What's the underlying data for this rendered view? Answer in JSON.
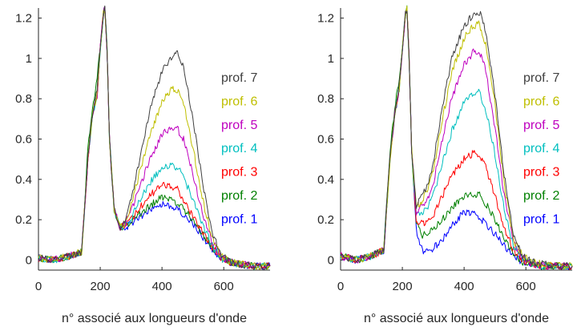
{
  "colors": {
    "prof. 1": "#0000ff",
    "prof. 2": "#008000",
    "prof. 3": "#ff0000",
    "prof. 4": "#00bfbf",
    "prof. 5": "#bf00bf",
    "prof. 6": "#bfbf00",
    "prof. 7": "#404040"
  },
  "chart_data": [
    {
      "type": "line",
      "title": "",
      "xlabel": "n° associé aux longueurs d'onde",
      "ylabel": "",
      "xlim": [
        0,
        750
      ],
      "ylim": [
        -0.05,
        1.25
      ],
      "xticks": [
        0,
        200,
        400,
        600
      ],
      "yticks": [
        0,
        0.2,
        0.4,
        0.6,
        0.8,
        1,
        1.2
      ],
      "xtick_labels": [
        "0",
        "200",
        "400",
        "600"
      ],
      "ytick_labels": [
        "0",
        "0.2",
        "0.4",
        "0.6",
        "0.8",
        "1",
        "1.2"
      ],
      "grid": false,
      "legend_position": "right",
      "legend": [
        "prof. 7",
        "prof. 6",
        "prof. 5",
        "prof. 4",
        "prof. 3",
        "prof. 2",
        "prof. 1"
      ],
      "x": [
        0,
        50,
        100,
        140,
        160,
        175,
        190,
        200,
        210,
        215,
        222,
        230,
        245,
        265,
        280,
        300,
        330,
        360,
        400,
        430,
        450,
        470,
        500,
        530,
        560,
        590,
        620,
        650,
        700,
        750
      ],
      "series": [
        {
          "name": "prof. 1",
          "values": [
            0.01,
            0.0,
            0.02,
            0.04,
            0.5,
            0.72,
            0.82,
            1.05,
            1.22,
            1.25,
            1.05,
            0.6,
            0.25,
            0.16,
            0.16,
            0.18,
            0.21,
            0.25,
            0.28,
            0.27,
            0.25,
            0.22,
            0.18,
            0.12,
            0.06,
            0.01,
            -0.01,
            -0.02,
            -0.03,
            -0.03
          ]
        },
        {
          "name": "prof. 2",
          "values": [
            0.01,
            0.0,
            0.02,
            0.04,
            0.55,
            0.75,
            0.9,
            1.05,
            1.22,
            1.25,
            1.05,
            0.6,
            0.25,
            0.16,
            0.17,
            0.19,
            0.23,
            0.27,
            0.31,
            0.3,
            0.28,
            0.25,
            0.2,
            0.13,
            0.07,
            0.01,
            -0.01,
            -0.02,
            -0.03,
            -0.03
          ]
        },
        {
          "name": "prof. 3",
          "values": [
            0.01,
            0.0,
            0.02,
            0.04,
            0.5,
            0.72,
            0.82,
            1.05,
            1.22,
            1.25,
            1.05,
            0.6,
            0.25,
            0.16,
            0.17,
            0.2,
            0.26,
            0.32,
            0.37,
            0.37,
            0.35,
            0.3,
            0.22,
            0.14,
            0.07,
            0.01,
            -0.01,
            -0.02,
            -0.03,
            -0.03
          ]
        },
        {
          "name": "prof. 4",
          "values": [
            0.01,
            0.0,
            0.02,
            0.04,
            0.5,
            0.72,
            0.82,
            1.05,
            1.22,
            1.25,
            1.05,
            0.6,
            0.25,
            0.16,
            0.17,
            0.21,
            0.3,
            0.38,
            0.46,
            0.47,
            0.46,
            0.41,
            0.3,
            0.18,
            0.08,
            0.01,
            -0.01,
            -0.02,
            -0.03,
            -0.03
          ]
        },
        {
          "name": "prof. 5",
          "values": [
            0.01,
            0.0,
            0.02,
            0.04,
            0.5,
            0.72,
            0.82,
            1.05,
            1.22,
            1.25,
            1.05,
            0.6,
            0.25,
            0.16,
            0.18,
            0.24,
            0.37,
            0.5,
            0.62,
            0.66,
            0.65,
            0.6,
            0.43,
            0.24,
            0.1,
            0.02,
            -0.01,
            -0.02,
            -0.03,
            -0.03
          ]
        },
        {
          "name": "prof. 6",
          "values": [
            0.01,
            0.0,
            0.02,
            0.04,
            0.5,
            0.72,
            0.82,
            1.05,
            1.22,
            1.25,
            1.05,
            0.6,
            0.25,
            0.16,
            0.18,
            0.27,
            0.45,
            0.62,
            0.78,
            0.85,
            0.84,
            0.78,
            0.56,
            0.31,
            0.12,
            0.02,
            -0.01,
            -0.02,
            -0.03,
            -0.03
          ]
        },
        {
          "name": "prof. 7",
          "values": [
            0.01,
            0.0,
            0.02,
            0.04,
            0.52,
            0.72,
            0.85,
            1.05,
            1.22,
            1.25,
            1.05,
            0.6,
            0.25,
            0.16,
            0.19,
            0.3,
            0.52,
            0.74,
            0.94,
            1.0,
            1.03,
            0.96,
            0.7,
            0.4,
            0.15,
            0.03,
            -0.01,
            -0.02,
            -0.03,
            -0.03
          ]
        }
      ]
    },
    {
      "type": "line",
      "title": "",
      "xlabel": "n° associé aux longueurs d'onde",
      "ylabel": "",
      "xlim": [
        0,
        750
      ],
      "ylim": [
        -0.05,
        1.25
      ],
      "xticks": [
        0,
        200,
        400,
        600
      ],
      "yticks": [
        0,
        0.2,
        0.4,
        0.6,
        0.8,
        1,
        1.2
      ],
      "xtick_labels": [
        "0",
        "200",
        "400",
        "600"
      ],
      "ytick_labels": [
        "0",
        "0.2",
        "0.4",
        "0.6",
        "0.8",
        "1",
        "1.2"
      ],
      "grid": false,
      "legend_position": "right",
      "legend": [
        "prof. 7",
        "prof. 6",
        "prof. 5",
        "prof. 4",
        "prof. 3",
        "prof. 2",
        "prof. 1"
      ],
      "x": [
        0,
        50,
        100,
        140,
        160,
        175,
        190,
        200,
        210,
        215,
        222,
        230,
        245,
        265,
        280,
        300,
        330,
        360,
        400,
        430,
        450,
        470,
        500,
        530,
        560,
        590,
        620,
        650,
        700,
        750
      ],
      "series": [
        {
          "name": "prof. 1",
          "values": [
            0.02,
            0.0,
            0.02,
            0.05,
            0.5,
            0.72,
            0.85,
            1.05,
            1.22,
            1.25,
            1.0,
            0.55,
            0.15,
            0.05,
            0.04,
            0.06,
            0.1,
            0.17,
            0.24,
            0.23,
            0.21,
            0.18,
            0.13,
            0.07,
            0.02,
            -0.01,
            -0.02,
            -0.03,
            -0.03,
            -0.03
          ]
        },
        {
          "name": "prof. 2",
          "values": [
            0.02,
            0.0,
            0.02,
            0.05,
            0.55,
            0.75,
            0.9,
            1.05,
            1.22,
            1.25,
            1.0,
            0.55,
            0.18,
            0.12,
            0.13,
            0.15,
            0.2,
            0.26,
            0.32,
            0.33,
            0.32,
            0.28,
            0.2,
            0.1,
            0.03,
            -0.01,
            -0.02,
            -0.03,
            -0.03,
            -0.03
          ]
        },
        {
          "name": "prof. 3",
          "values": [
            0.02,
            0.0,
            0.02,
            0.05,
            0.5,
            0.72,
            0.85,
            1.05,
            1.22,
            1.25,
            1.0,
            0.55,
            0.2,
            0.18,
            0.19,
            0.22,
            0.32,
            0.42,
            0.5,
            0.53,
            0.52,
            0.46,
            0.32,
            0.16,
            0.05,
            0.0,
            -0.02,
            -0.03,
            -0.03,
            -0.03
          ]
        },
        {
          "name": "prof. 4",
          "values": [
            0.02,
            0.0,
            0.02,
            0.05,
            0.5,
            0.72,
            0.85,
            1.05,
            1.22,
            1.25,
            1.0,
            0.55,
            0.22,
            0.24,
            0.26,
            0.32,
            0.48,
            0.64,
            0.78,
            0.83,
            0.83,
            0.75,
            0.52,
            0.25,
            0.07,
            0.01,
            -0.02,
            -0.03,
            -0.03,
            -0.03
          ]
        },
        {
          "name": "prof. 5",
          "values": [
            0.02,
            0.0,
            0.02,
            0.05,
            0.5,
            0.72,
            0.85,
            1.05,
            1.22,
            1.25,
            1.0,
            0.55,
            0.24,
            0.27,
            0.3,
            0.38,
            0.6,
            0.8,
            0.97,
            1.03,
            1.03,
            0.94,
            0.66,
            0.32,
            0.09,
            0.01,
            -0.02,
            -0.03,
            -0.03,
            -0.03
          ]
        },
        {
          "name": "prof. 6",
          "values": [
            0.02,
            0.0,
            0.02,
            0.05,
            0.5,
            0.72,
            0.85,
            1.05,
            1.22,
            1.25,
            1.0,
            0.55,
            0.26,
            0.3,
            0.34,
            0.44,
            0.7,
            0.93,
            1.1,
            1.16,
            1.17,
            1.07,
            0.77,
            0.38,
            0.1,
            0.02,
            -0.01,
            -0.02,
            -0.03,
            -0.03
          ]
        },
        {
          "name": "prof. 7",
          "values": [
            0.02,
            0.0,
            0.02,
            0.05,
            0.52,
            0.72,
            0.87,
            1.05,
            1.22,
            1.25,
            1.0,
            0.55,
            0.27,
            0.32,
            0.37,
            0.48,
            0.76,
            1.0,
            1.16,
            1.22,
            1.23,
            1.13,
            0.82,
            0.42,
            0.12,
            0.02,
            -0.01,
            -0.02,
            -0.03,
            -0.03
          ]
        }
      ]
    }
  ]
}
